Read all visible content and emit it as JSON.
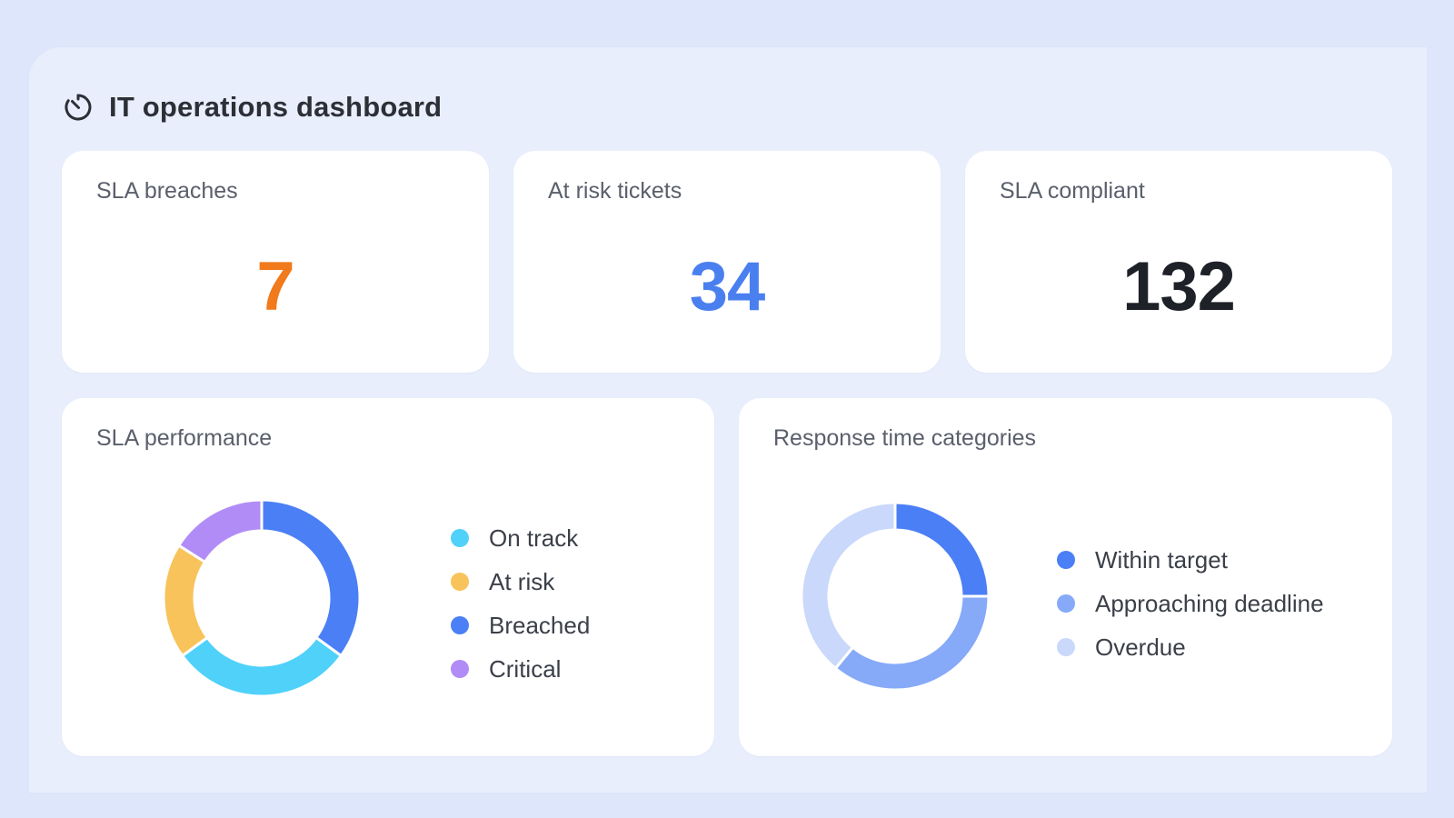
{
  "dashboard": {
    "title": "IT operations dashboard",
    "icon": "timer-icon"
  },
  "kpis": [
    {
      "label": "SLA breaches",
      "value": "7",
      "color": "#f07a1c"
    },
    {
      "label": "At risk tickets",
      "value": "34",
      "color": "#4a7ff0"
    },
    {
      "label": "SLA compliant",
      "value": "132",
      "color": "#1e2128"
    }
  ],
  "sla_performance": {
    "title": "SLA performance",
    "legend": [
      {
        "label": "On track",
        "color": "#4fd1fa"
      },
      {
        "label": "At risk",
        "color": "#f8c35a"
      },
      {
        "label": "Breached",
        "color": "#4b7ff6"
      },
      {
        "label": "Critical",
        "color": "#b18cf7"
      }
    ]
  },
  "response_time": {
    "title": "Response time categories",
    "legend": [
      {
        "label": "Within target",
        "color": "#4b7ff6"
      },
      {
        "label": "Approaching deadline",
        "color": "#86a9f8"
      },
      {
        "label": "Overdue",
        "color": "#c9d8fb"
      }
    ]
  },
  "chart_data": [
    {
      "type": "pie",
      "title": "SLA performance",
      "categories": [
        "Breached",
        "On track",
        "At risk",
        "Critical"
      ],
      "values": [
        35,
        30,
        19,
        16
      ],
      "colors": [
        "#4b7ff6",
        "#4fd1fa",
        "#f8c35a",
        "#b18cf7"
      ]
    },
    {
      "type": "pie",
      "title": "Response time categories",
      "categories": [
        "Within target",
        "Approaching deadline",
        "Overdue"
      ],
      "values": [
        25,
        36,
        39
      ],
      "colors": [
        "#4b7ff6",
        "#86a9f8",
        "#c9d8fb"
      ]
    }
  ]
}
